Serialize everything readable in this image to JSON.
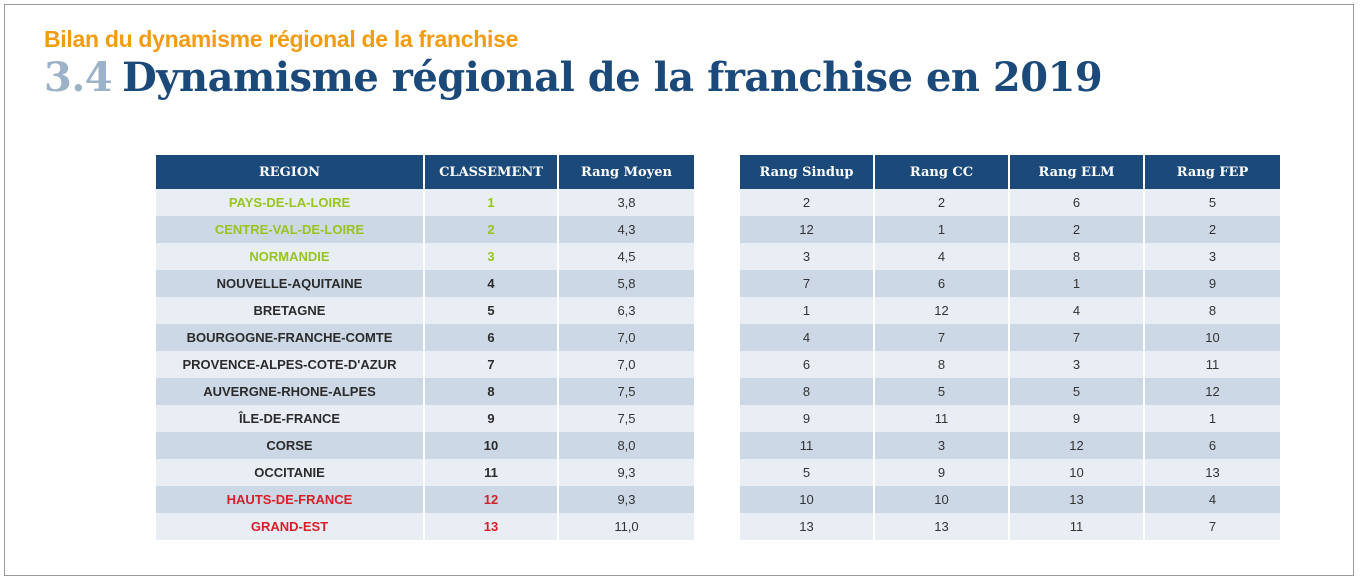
{
  "header": {
    "kicker": "Bilan du dynamisme régional de la franchise",
    "section_number": "3.4",
    "title": "Dynamisme régional de la franchise en 2019"
  },
  "colors": {
    "top3": "#97c41f",
    "bottom2": "#d71f2a",
    "header_bg": "#1b4a7a",
    "kicker": "#f39c12"
  },
  "table1": {
    "headers": [
      "REGION",
      "CLASSEMENT",
      "Rang Moyen"
    ],
    "rows": [
      {
        "region": "PAYS-DE-LA-LOIRE",
        "classement": "1",
        "rang_moyen": "3,8",
        "highlight": "green"
      },
      {
        "region": "CENTRE-VAL-DE-LOIRE",
        "classement": "2",
        "rang_moyen": "4,3",
        "highlight": "green"
      },
      {
        "region": "NORMANDIE",
        "classement": "3",
        "rang_moyen": "4,5",
        "highlight": "green"
      },
      {
        "region": "NOUVELLE-AQUITAINE",
        "classement": "4",
        "rang_moyen": "5,8",
        "highlight": ""
      },
      {
        "region": "BRETAGNE",
        "classement": "5",
        "rang_moyen": "6,3",
        "highlight": ""
      },
      {
        "region": "BOURGOGNE-FRANCHE-COMTE",
        "classement": "6",
        "rang_moyen": "7,0",
        "highlight": ""
      },
      {
        "region": "PROVENCE-ALPES-COTE-D'AZUR",
        "classement": "7",
        "rang_moyen": "7,0",
        "highlight": ""
      },
      {
        "region": "AUVERGNE-RHONE-ALPES",
        "classement": "8",
        "rang_moyen": "7,5",
        "highlight": ""
      },
      {
        "region": "ÎLE-DE-FRANCE",
        "classement": "9",
        "rang_moyen": "7,5",
        "highlight": ""
      },
      {
        "region": "CORSE",
        "classement": "10",
        "rang_moyen": "8,0",
        "highlight": ""
      },
      {
        "region": "OCCITANIE",
        "classement": "11",
        "rang_moyen": "9,3",
        "highlight": ""
      },
      {
        "region": "HAUTS-DE-FRANCE",
        "classement": "12",
        "rang_moyen": "9,3",
        "highlight": "red"
      },
      {
        "region": "GRAND-EST",
        "classement": "13",
        "rang_moyen": "11,0",
        "highlight": "red"
      }
    ]
  },
  "table2": {
    "headers": [
      "Rang Sindup",
      "Rang CC",
      "Rang ELM",
      "Rang FEP"
    ],
    "rows": [
      [
        "2",
        "2",
        "6",
        "5"
      ],
      [
        "12",
        "1",
        "2",
        "2"
      ],
      [
        "3",
        "4",
        "8",
        "3"
      ],
      [
        "7",
        "6",
        "1",
        "9"
      ],
      [
        "1",
        "12",
        "4",
        "8"
      ],
      [
        "4",
        "7",
        "7",
        "10"
      ],
      [
        "6",
        "8",
        "3",
        "11"
      ],
      [
        "8",
        "5",
        "5",
        "12"
      ],
      [
        "9",
        "11",
        "9",
        "1"
      ],
      [
        "11",
        "3",
        "12",
        "6"
      ],
      [
        "5",
        "9",
        "10",
        "13"
      ],
      [
        "10",
        "10",
        "13",
        "4"
      ],
      [
        "13",
        "13",
        "11",
        "7"
      ]
    ]
  }
}
